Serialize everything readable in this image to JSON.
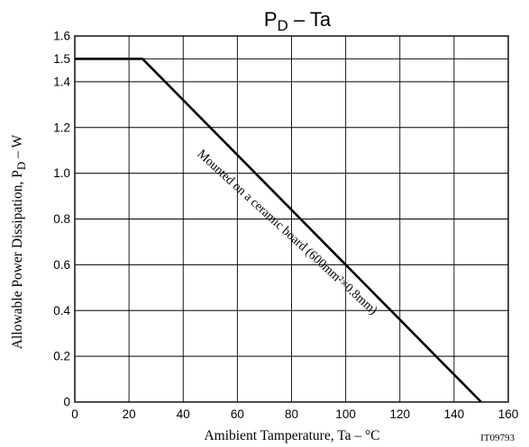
{
  "chart_data": {
    "type": "line",
    "title": {
      "main": "P",
      "subscript": "D",
      "rest": " – Ta"
    },
    "xlabel": "Amibient Tamperature, Ta  –  °C",
    "ylabel": {
      "main": "Allowable Power Dissipation, P",
      "subscript": "D",
      "rest": "  –  W"
    },
    "xlim": [
      0,
      160
    ],
    "ylim": [
      0,
      1.6
    ],
    "x_ticks": [
      0,
      20,
      40,
      60,
      80,
      100,
      120,
      140,
      160
    ],
    "x_tick_labels": [
      "0",
      "20",
      "40",
      "60",
      "80",
      "100",
      "120",
      "140",
      "160"
    ],
    "y_ticks": [
      0,
      0.2,
      0.4,
      0.6,
      0.8,
      1.0,
      1.2,
      1.4,
      1.5,
      1.6
    ],
    "y_tick_labels": [
      "0",
      "0.2",
      "0.4",
      "0.6",
      "0.8",
      "1.0",
      "1.2",
      "1.4",
      "1.5",
      "1.6"
    ],
    "grid": true,
    "series": [
      {
        "x": [
          0,
          25,
          150
        ],
        "y": [
          1.5,
          1.5,
          0
        ]
      }
    ],
    "annotation": {
      "text": "Mounted on a ceramic board (600mm²×0.8mm)",
      "x_start": 45,
      "y_start": 1.08,
      "x_end": 110,
      "y_end": 0.38
    },
    "doc_id": "IT09793",
    "colors": {
      "line": "#000000",
      "grid": "#000000",
      "background": "#ffffff"
    }
  }
}
